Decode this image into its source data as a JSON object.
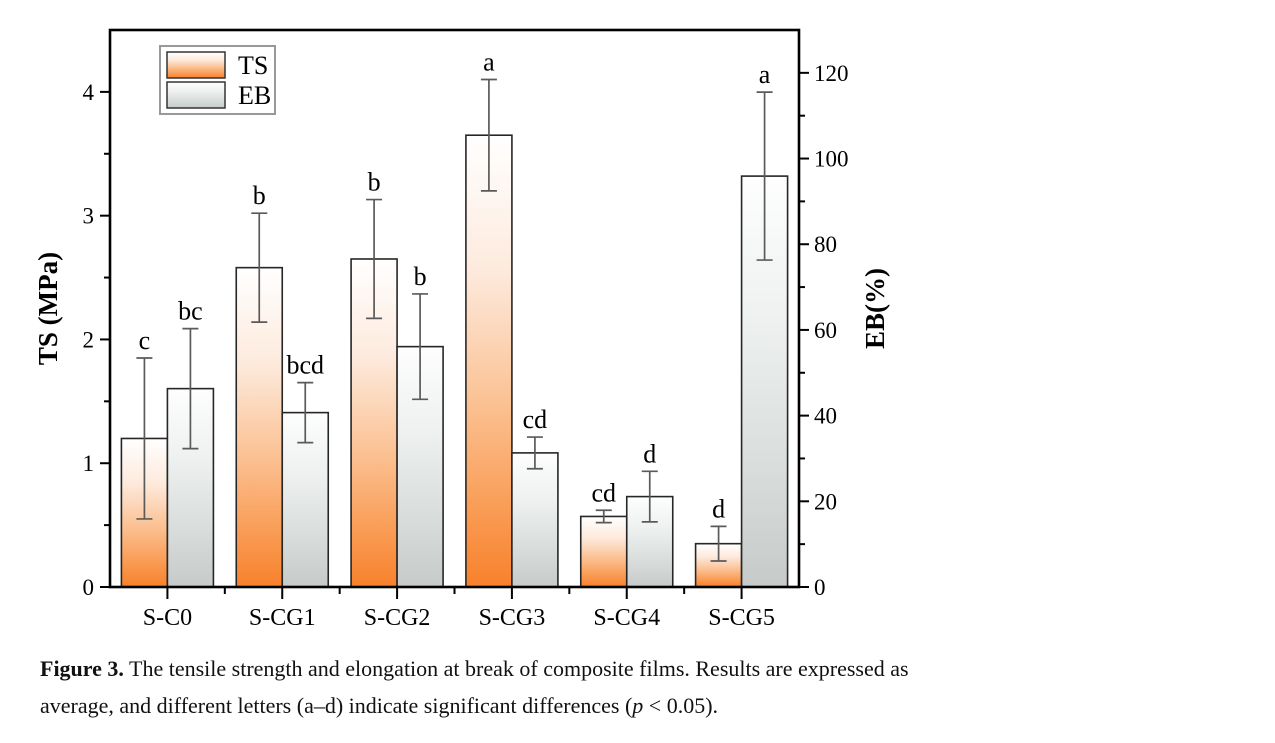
{
  "chart_data": {
    "type": "bar",
    "title": "",
    "categories": [
      "S-C0",
      "S-CG1",
      "S-CG2",
      "S-CG3",
      "S-CG4",
      "S-CG5"
    ],
    "series": [
      {
        "name": "TS",
        "axis": "left",
        "values": [
          1.2,
          2.58,
          2.65,
          3.65,
          0.57,
          0.35
        ],
        "errors": [
          0.65,
          0.44,
          0.48,
          0.45,
          0.05,
          0.14
        ],
        "letters": [
          "c",
          "b",
          "b",
          "a",
          "cd",
          "d"
        ],
        "gradient": [
          {
            "o": 0,
            "c": "#ffffff"
          },
          {
            "o": 30,
            "c": "#fdeadd"
          },
          {
            "o": 60,
            "c": "#fbc091"
          },
          {
            "o": 84,
            "c": "#f99a52"
          },
          {
            "o": 100,
            "c": "#f8812c"
          }
        ]
      },
      {
        "name": "EB",
        "axis": "right",
        "values": [
          46.3,
          40.7,
          56.1,
          31.3,
          21.1,
          95.9
        ],
        "errors": [
          14.0,
          7.0,
          12.3,
          3.7,
          5.9,
          19.6
        ],
        "letters": [
          "bc",
          "bcd",
          "b",
          "cd",
          "d",
          "a"
        ],
        "gradient": [
          {
            "o": 0,
            "c": "#fdfefd"
          },
          {
            "o": 35,
            "c": "#eef1f0"
          },
          {
            "o": 70,
            "c": "#d9dddc"
          },
          {
            "o": 100,
            "c": "#c6cac9"
          }
        ]
      }
    ],
    "left_axis": {
      "label": "TS (MPa)",
      "min": 0,
      "max": 4.5,
      "tick_values": [
        0,
        1,
        2,
        3,
        4
      ],
      "tick_labels": [
        "0",
        "1",
        "2",
        "3",
        "4"
      ],
      "minor_step": 0.5
    },
    "right_axis": {
      "label": "EB(%)",
      "min": 0,
      "max": 130,
      "tick_values": [
        0,
        20,
        40,
        60,
        80,
        100,
        120
      ],
      "tick_labels": [
        "0",
        "20",
        "40",
        "60",
        "80",
        "100",
        "120"
      ],
      "minor_step": 10
    },
    "legend": {
      "entries": [
        "TS",
        "EB"
      ],
      "position": "top-left"
    },
    "grid": false,
    "bar_outline": "#262626",
    "error_bar_color": "#5a5a5a",
    "axis_color": "#000000"
  },
  "caption": {
    "lines": [
      {
        "parts": [
          {
            "text": "Figure 3.",
            "bold": true
          },
          {
            "text": " The tensile strength and elongation at break of composite films. Results are expressed as"
          }
        ]
      },
      {
        "parts": [
          {
            "text": "average, and different letters (a–d) indicate significant differences ("
          },
          {
            "text": "p",
            "italic": true
          },
          {
            "text": " < 0.05)."
          }
        ]
      }
    ]
  }
}
